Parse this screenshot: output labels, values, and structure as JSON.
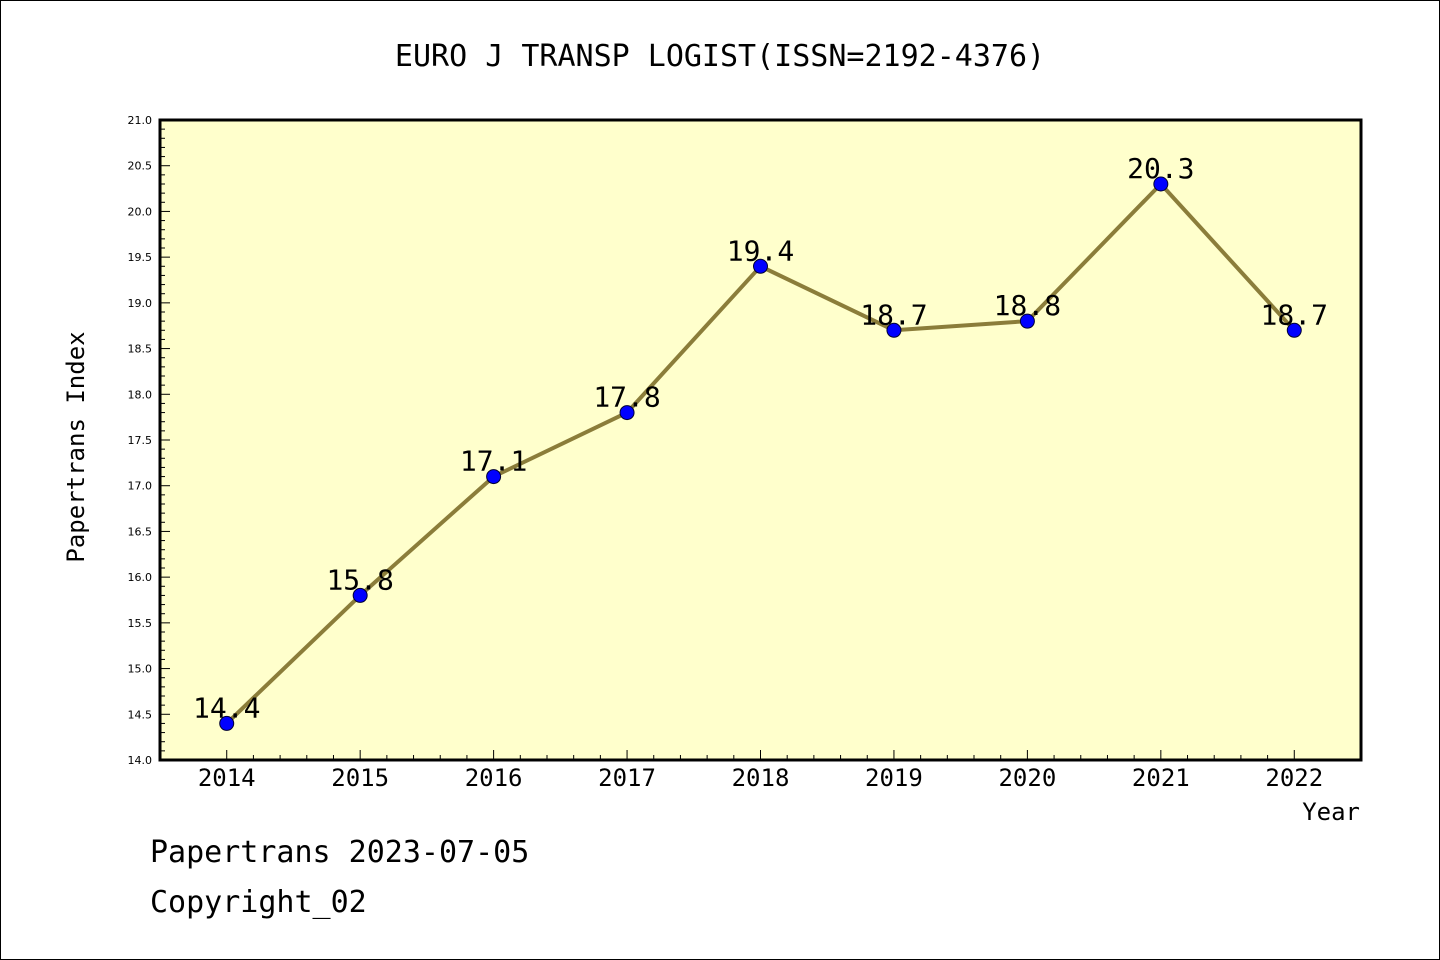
{
  "chart_data": {
    "type": "line",
    "title": "EURO J TRANSP LOGIST(ISSN=2192-4376)",
    "xlabel": "Year",
    "ylabel": "Papertrans Index",
    "x": [
      2014,
      2015,
      2016,
      2017,
      2018,
      2019,
      2020,
      2021,
      2022
    ],
    "values": [
      14.4,
      15.8,
      17.1,
      17.8,
      19.4,
      18.7,
      18.8,
      20.3,
      18.7
    ],
    "data_labels": [
      "14.4",
      "15.8",
      "17.1",
      "17.8",
      "19.4",
      "18.7",
      "18.8",
      "20.3",
      "18.7"
    ],
    "x_tick_labels": [
      "2014",
      "2015",
      "2016",
      "2017",
      "2018",
      "2019",
      "2020",
      "2021",
      "2022"
    ],
    "y_tick_labels": [
      "14.0",
      "14.5",
      "15.0",
      "15.5",
      "16.0",
      "16.5",
      "17.0",
      "17.5",
      "18.0",
      "18.5",
      "19.0",
      "19.5",
      "20.0",
      "20.5",
      "21.0"
    ],
    "ylim": [
      14.0,
      21.0
    ],
    "xlim": [
      2013.5,
      2022.5
    ],
    "grid": false,
    "colors": {
      "plot_background": "#ffffcc",
      "line": "#8b7d3a",
      "marker": "#0000ff"
    }
  },
  "footer": {
    "line1": "Papertrans 2023-07-05",
    "line2": "Copyright_02"
  }
}
